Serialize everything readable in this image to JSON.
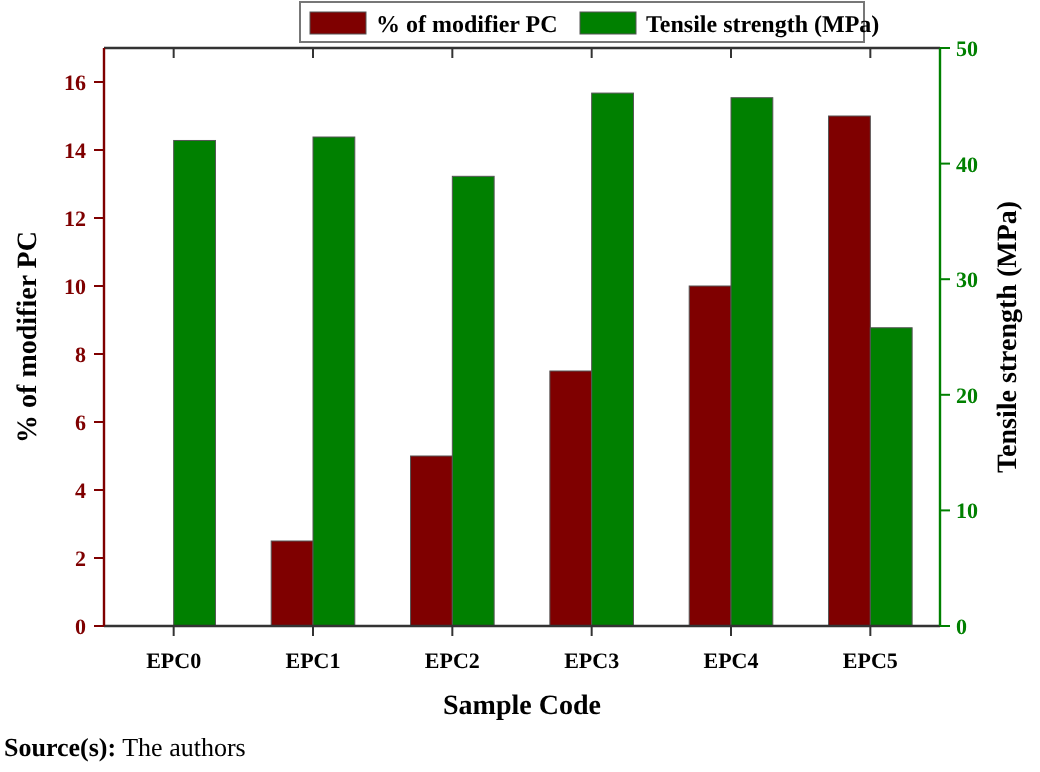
{
  "chart_data": {
    "type": "bar",
    "categories": [
      "EPC0",
      "EPC1",
      "EPC2",
      "EPC3",
      "EPC4",
      "EPC5"
    ],
    "series": [
      {
        "name": "% of modifier PC",
        "color": "#7f0000",
        "values": [
          0,
          2.5,
          5,
          7.5,
          10,
          15
        ]
      },
      {
        "name": "Tensile strength (MPa)",
        "color": "#008000",
        "axis": "y2",
        "values": [
          42,
          42.3,
          38.9,
          46.1,
          45.7,
          25.8
        ]
      }
    ],
    "xlabel": "Sample Code",
    "ylabel": "% of modifier PC",
    "y2label": "Tensile strength (MPa)",
    "ylim": [
      0,
      17
    ],
    "yticks": [
      0,
      2,
      4,
      6,
      8,
      10,
      12,
      14,
      16
    ],
    "y2lim": [
      0,
      50
    ],
    "y2ticks": [
      0,
      10,
      20,
      30,
      40,
      50
    ],
    "legend": "top",
    "grid": false,
    "annotations": [
      "Source(s): The authors"
    ]
  }
}
